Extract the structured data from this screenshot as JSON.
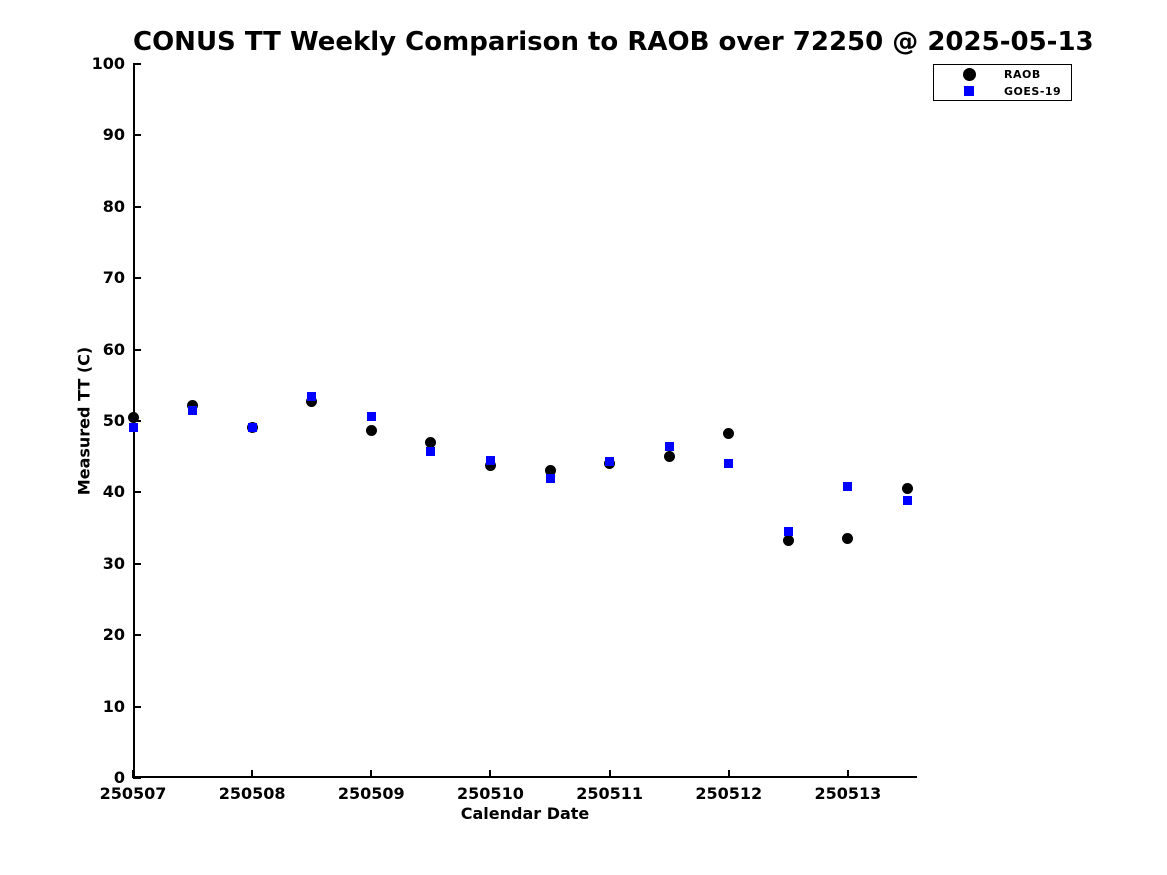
{
  "chart_data": {
    "type": "scatter",
    "title": "CONUS TT Weekly Comparison to RAOB over 72250 @ 2025-05-13",
    "xlabel": "Calendar Date",
    "ylabel": "Measured TT (C)",
    "xlim": [
      250507,
      250513.58
    ],
    "ylim": [
      0,
      100
    ],
    "grid": false,
    "background_color": "#ffffff",
    "axis_color": "#000000",
    "yticks": [
      0,
      10,
      20,
      30,
      40,
      50,
      60,
      70,
      80,
      90,
      100
    ],
    "xticks": [
      250507,
      250508,
      250509,
      250510,
      250511,
      250512,
      250513
    ],
    "xtick_labels": [
      "250507",
      "250508",
      "250509",
      "250510",
      "250511",
      "250512",
      "250513"
    ],
    "x": [
      250507.0,
      250507.5,
      250508.0,
      250508.5,
      250509.0,
      250509.5,
      250510.0,
      250510.5,
      250511.0,
      250511.5,
      250512.0,
      250512.5,
      250513.0,
      250513.5
    ],
    "series": [
      {
        "name": "RAOB",
        "marker": "circle",
        "color": "#000000",
        "values": [
          50.5,
          52.2,
          49.1,
          52.8,
          48.7,
          47.0,
          43.7,
          43.1,
          44.1,
          45.0,
          48.3,
          33.2,
          33.6,
          40.6
        ]
      },
      {
        "name": "GOES-19",
        "marker": "square",
        "color": "#0000ff",
        "values": [
          49.1,
          51.5,
          49.1,
          53.4,
          50.7,
          45.7,
          44.5,
          41.9,
          44.3,
          46.4,
          44.1,
          34.5,
          40.8,
          38.8
        ]
      }
    ],
    "legend": {
      "position": "top-right",
      "entries": [
        {
          "label": "RAOB",
          "marker": "circle",
          "color": "#000000"
        },
        {
          "label": "GOES-19",
          "marker": "square",
          "color": "#0000ff"
        }
      ]
    }
  }
}
